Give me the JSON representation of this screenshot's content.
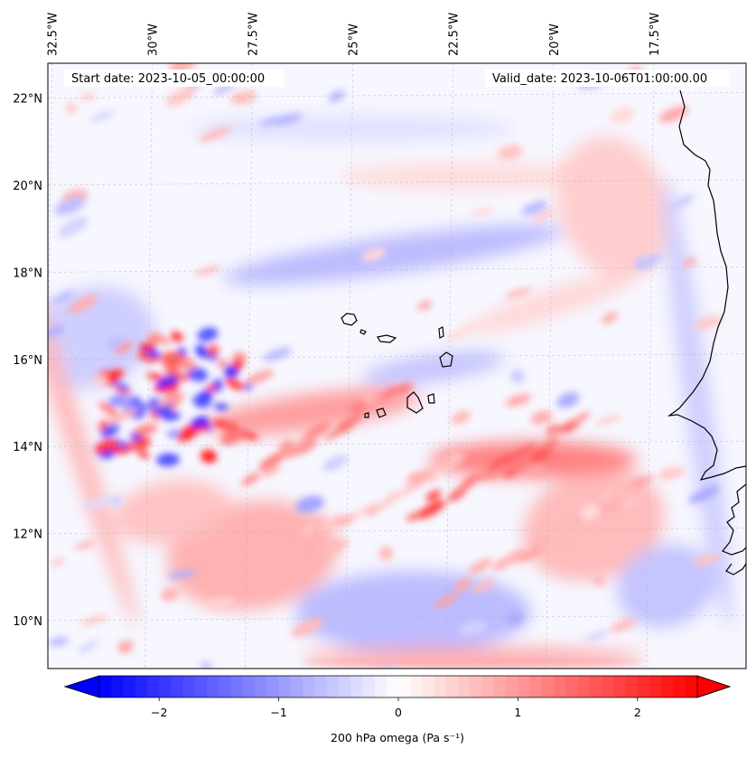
{
  "map": {
    "start_date_label": "Start date: 2023-10-05_00:00:00",
    "valid_date_label": "Valid_date: 2023-10-06T01:00:00.00",
    "lon_ticks": [
      {
        "label": "32.5°W",
        "lon": -32.5
      },
      {
        "label": "30°W",
        "lon": -30.0
      },
      {
        "label": "27.5°W",
        "lon": -27.5
      },
      {
        "label": "25°W",
        "lon": -25.0
      },
      {
        "label": "22.5°W",
        "lon": -22.5
      },
      {
        "label": "20°W",
        "lon": -20.0
      },
      {
        "label": "17.5°W",
        "lon": -17.5
      }
    ],
    "lat_ticks": [
      {
        "label": "22°N",
        "lat": 22
      },
      {
        "label": "20°N",
        "lat": 20
      },
      {
        "label": "18°N",
        "lat": 18
      },
      {
        "label": "16°N",
        "lat": 16
      },
      {
        "label": "14°N",
        "lat": 14
      },
      {
        "label": "12°N",
        "lat": 12
      },
      {
        "label": "10°N",
        "lat": 10
      }
    ],
    "extent": {
      "lon_min": -32.6,
      "lon_max": -15.2,
      "lat_min": 8.9,
      "lat_max": 22.8
    },
    "gridlines": true
  },
  "colorbar": {
    "label": "200 hPa omega (Pa s⁻¹)",
    "ticks": [
      {
        "label": "−2",
        "value": -2
      },
      {
        "label": "−1",
        "value": -1
      },
      {
        "label": "0",
        "value": 0
      },
      {
        "label": "1",
        "value": 1
      },
      {
        "label": "2",
        "value": 2
      }
    ],
    "range": [
      -2.5,
      2.5
    ],
    "extend": "both",
    "colormap": "bwr",
    "colors": {
      "negative": "#0000ff",
      "zero": "#ffffff",
      "positive": "#ff0000"
    }
  },
  "chart_data": {
    "type": "heatmap",
    "title": "",
    "variable": "200 hPa omega",
    "units": "Pa s⁻¹",
    "value_range": [
      -2.5,
      2.5
    ],
    "features": [
      {
        "kind": "positive-cluster",
        "lon": -29.3,
        "lat": 15.3,
        "value": 2.3
      },
      {
        "kind": "negative-cluster",
        "lon": -29.0,
        "lat": 14.8,
        "value": -2.0
      },
      {
        "kind": "negative-cluster",
        "lon": -30.8,
        "lat": 14.0,
        "value": -2.5
      },
      {
        "kind": "positive-band",
        "lon": -26.0,
        "lat": 14.5,
        "value": 1.3
      },
      {
        "kind": "positive-band",
        "lon": -21.0,
        "lat": 13.8,
        "value": 1.8
      },
      {
        "kind": "negative-band",
        "lon": -24.0,
        "lat": 11.0,
        "value": -0.6
      },
      {
        "kind": "positive-band",
        "lon": -21.5,
        "lat": 9.2,
        "value": 0.9
      }
    ]
  }
}
